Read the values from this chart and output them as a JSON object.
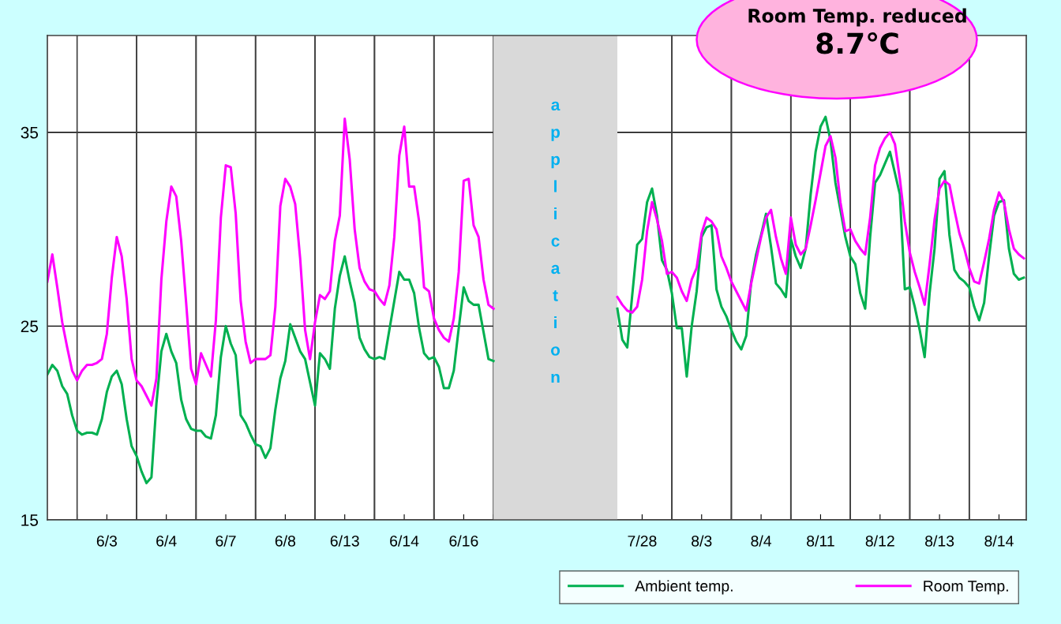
{
  "chart_data": {
    "type": "line",
    "annotations": [
      "Room Temp. reduced",
      "8.7℃",
      "application"
    ],
    "categories": [
      null,
      null,
      null,
      null,
      null,
      null,
      null,
      null,
      null,
      null,
      null,
      null,
      "6/3",
      null,
      null,
      null,
      null,
      null,
      null,
      null,
      null,
      null,
      null,
      null,
      "6/4",
      null,
      null,
      null,
      null,
      null,
      null,
      null,
      null,
      null,
      null,
      null,
      "6/7",
      null,
      null,
      null,
      null,
      null,
      null,
      null,
      null,
      null,
      null,
      null,
      "6/8",
      null,
      null,
      null,
      null,
      null,
      null,
      null,
      null,
      null,
      null,
      null,
      "6/13",
      null,
      null,
      null,
      null,
      null,
      null,
      null,
      null,
      null,
      null,
      null,
      "6/14",
      null,
      null,
      null,
      null,
      null,
      null,
      null,
      null,
      null,
      null,
      null,
      "6/16",
      null,
      null,
      null,
      null,
      null,
      null,
      null,
      null,
      null,
      null,
      null,
      null,
      null,
      null,
      null,
      null,
      null,
      null,
      null,
      null,
      null,
      null,
      null,
      null,
      null,
      null,
      null,
      null,
      null,
      null,
      null,
      null,
      null,
      null,
      null,
      "7/28",
      null,
      null,
      null,
      null,
      null,
      null,
      null,
      null,
      null,
      null,
      null,
      "8/3",
      null,
      null,
      null,
      null,
      null,
      null,
      null,
      null,
      null,
      null,
      null,
      "8/4",
      null,
      null,
      null,
      null,
      null,
      null,
      null,
      null,
      null,
      null,
      null,
      "8/11",
      null,
      null,
      null,
      null,
      null,
      null,
      null,
      null,
      null,
      null,
      null,
      "8/12",
      null,
      null,
      null,
      null,
      null,
      null,
      null,
      null,
      null,
      null,
      null,
      "8/13",
      null,
      null,
      null,
      null,
      null,
      null,
      null,
      null,
      null,
      null,
      null,
      "8/14",
      null,
      null,
      null,
      null,
      null
    ],
    "ylim": [
      15,
      40
    ],
    "yticks": [
      15,
      25,
      35
    ],
    "grid": true,
    "legend": "bottom right",
    "marker": "none",
    "line_style": "solid",
    "series": [
      {
        "name": "Ambient temp.",
        "color": "#00b050",
        "values": [
          22.5,
          23.0,
          22.7,
          21.9,
          21.5,
          20.4,
          19.6,
          19.4,
          19.5,
          19.5,
          19.4,
          20.2,
          21.6,
          22.4,
          22.7,
          22.0,
          20.2,
          18.8,
          18.3,
          17.5,
          16.9,
          17.2,
          21.0,
          23.7,
          24.6,
          23.7,
          23.1,
          21.2,
          20.2,
          19.7,
          19.6,
          19.6,
          19.3,
          19.2,
          20.4,
          23.4,
          25.0,
          24.1,
          23.5,
          20.4,
          20.0,
          19.4,
          18.9,
          18.8,
          18.2,
          18.7,
          20.7,
          22.3,
          23.2,
          25.1,
          24.4,
          23.7,
          23.3,
          22.1,
          20.9,
          23.6,
          23.3,
          22.8,
          25.9,
          27.6,
          28.6,
          27.3,
          26.2,
          24.4,
          23.8,
          23.4,
          23.3,
          23.4,
          23.3,
          24.8,
          26.3,
          27.8,
          27.4,
          27.4,
          26.7,
          24.9,
          23.6,
          23.3,
          23.4,
          22.9,
          21.8,
          21.8,
          22.7,
          24.9,
          27.0,
          26.3,
          26.1,
          26.1,
          24.7,
          23.3,
          23.2,
          null,
          null,
          null,
          null,
          null,
          null,
          null,
          null,
          null,
          null,
          null,
          null,
          null,
          null,
          null,
          null,
          null,
          null,
          null,
          null,
          null,
          null,
          null,
          null,
          25.9,
          24.3,
          23.9,
          26.6,
          29.2,
          29.5,
          31.4,
          32.1,
          30.7,
          28.4,
          27.9,
          26.7,
          24.9,
          24.9,
          22.4,
          25.0,
          26.8,
          29.6,
          30.1,
          30.2,
          26.9,
          26.0,
          25.5,
          24.8,
          24.2,
          23.8,
          24.5,
          27.3,
          28.7,
          29.7,
          30.8,
          29.1,
          27.2,
          26.9,
          26.5,
          29.5,
          28.6,
          28.0,
          29.0,
          31.8,
          34.0,
          35.3,
          35.8,
          34.6,
          32.4,
          31.0,
          29.6,
          28.6,
          28.2,
          26.7,
          25.9,
          29.6,
          32.4,
          32.8,
          33.4,
          34.0,
          32.9,
          31.8,
          26.9,
          27.0,
          26.0,
          24.8,
          23.4,
          26.7,
          29.0,
          32.6,
          33.0,
          29.7,
          27.9,
          27.5,
          27.3,
          27.0,
          26.0,
          25.3,
          26.2,
          28.6,
          30.7,
          31.4,
          31.5,
          29.0,
          27.7,
          27.4,
          27.5
        ]
      },
      {
        "name": "Room Temp.",
        "color": "#ff00ff",
        "values": [
          27.3,
          28.7,
          27.0,
          25.2,
          23.9,
          22.7,
          22.2,
          22.7,
          23.0,
          23.0,
          23.1,
          23.3,
          24.6,
          27.5,
          29.6,
          28.6,
          26.4,
          23.3,
          22.2,
          21.9,
          21.4,
          20.9,
          22.3,
          27.4,
          30.4,
          32.2,
          31.7,
          29.4,
          26.2,
          22.8,
          22.0,
          23.6,
          23.0,
          22.4,
          25.3,
          30.6,
          33.3,
          33.2,
          30.8,
          26.3,
          24.2,
          23.1,
          23.3,
          23.3,
          23.3,
          23.5,
          26.0,
          31.2,
          32.6,
          32.2,
          31.3,
          28.5,
          24.8,
          23.3,
          25.2,
          26.6,
          26.4,
          26.8,
          29.4,
          30.7,
          35.7,
          33.6,
          30.0,
          28.0,
          27.3,
          26.9,
          26.8,
          26.4,
          26.1,
          27.1,
          29.6,
          33.8,
          35.3,
          32.2,
          32.2,
          30.4,
          27.0,
          26.8,
          25.4,
          24.8,
          24.4,
          24.2,
          25.4,
          27.8,
          32.5,
          32.6,
          30.2,
          29.6,
          27.4,
          26.1,
          25.9,
          null,
          null,
          null,
          null,
          null,
          null,
          null,
          null,
          null,
          null,
          null,
          null,
          null,
          null,
          null,
          null,
          null,
          null,
          null,
          null,
          null,
          null,
          null,
          null,
          26.5,
          26.1,
          25.8,
          25.7,
          26.0,
          27.4,
          29.9,
          31.4,
          30.5,
          29.4,
          27.7,
          27.8,
          27.5,
          26.8,
          26.3,
          27.4,
          28.0,
          29.8,
          30.6,
          30.4,
          30.0,
          28.6,
          28.0,
          27.3,
          26.8,
          26.3,
          25.8,
          27.2,
          28.4,
          29.6,
          30.6,
          31.0,
          29.6,
          28.5,
          27.7,
          30.6,
          29.2,
          28.7,
          29.0,
          30.2,
          31.5,
          32.9,
          34.3,
          34.8,
          33.7,
          31.4,
          29.9,
          30.0,
          29.4,
          29.0,
          28.7,
          30.6,
          33.3,
          34.2,
          34.7,
          35.0,
          34.4,
          32.6,
          30.4,
          28.8,
          27.8,
          27.0,
          26.1,
          28.2,
          30.5,
          32.1,
          32.5,
          32.3,
          31.0,
          29.8,
          29.0,
          28.0,
          27.3,
          27.2,
          28.3,
          29.5,
          31.0,
          31.9,
          31.4,
          30.0,
          29.0,
          28.7,
          28.5
        ]
      }
    ]
  }
}
